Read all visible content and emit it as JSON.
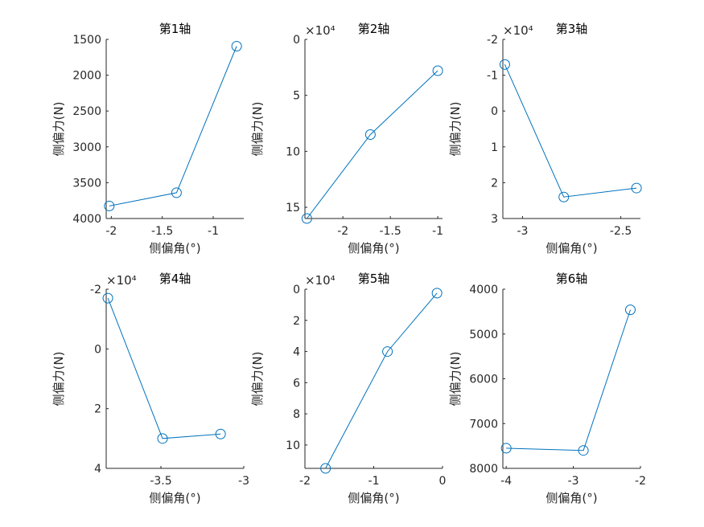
{
  "chart_data": [
    {
      "type": "line",
      "title": "第1轴",
      "xlabel": "侧偏角(°)",
      "ylabel": "侧偏力(N)",
      "x": [
        -2.02,
        -1.36,
        -0.77
      ],
      "y": [
        3825,
        3640,
        1595
      ],
      "xlim": [
        -2.05,
        -0.7
      ],
      "ylim": [
        1500,
        4000
      ],
      "y_reversed": true,
      "xticks": [
        -2,
        -1.5,
        -1
      ],
      "xtick_labels": [
        "-2",
        "-1.5",
        "-1"
      ],
      "yticks": [
        1500,
        2000,
        2500,
        3000,
        3500,
        4000
      ],
      "ytick_labels": [
        "1500",
        "2000",
        "2500",
        "3000",
        "3500",
        "4000"
      ],
      "exponent": "",
      "marker": "circle",
      "color": "#0072BD"
    },
    {
      "type": "line",
      "title": "第2轴",
      "xlabel": "侧偏角(°)",
      "ylabel": "侧偏力(N)",
      "x": [
        -2.38,
        -1.71,
        -1.0
      ],
      "y": [
        160000,
        85000,
        28000
      ],
      "xlim": [
        -2.4,
        -0.95
      ],
      "ylim": [
        0,
        160000
      ],
      "y_reversed": true,
      "xticks": [
        -2,
        -1.5,
        -1
      ],
      "xtick_labels": [
        "-2",
        "-1.5",
        "-1"
      ],
      "yticks": [
        0,
        50000,
        100000,
        150000
      ],
      "ytick_labels": [
        "0",
        "5",
        "10",
        "15"
      ],
      "exponent": "×10⁴",
      "marker": "circle",
      "color": "#0072BD"
    },
    {
      "type": "line",
      "title": "第3轴",
      "xlabel": "侧偏角(°)",
      "ylabel": "侧偏力(N)",
      "x": [
        -3.09,
        -2.79,
        -2.42
      ],
      "y": [
        -13000,
        24000,
        21500
      ],
      "xlim": [
        -3.1,
        -2.4
      ],
      "ylim": [
        -20000,
        30000
      ],
      "y_reversed": true,
      "xticks": [
        -3,
        -2.5
      ],
      "xtick_labels": [
        "-3",
        "-2.5"
      ],
      "yticks": [
        -20000,
        -10000,
        0,
        10000,
        20000,
        30000
      ],
      "ytick_labels": [
        "-2",
        "-1",
        "0",
        "1",
        "2",
        "3"
      ],
      "exponent": "×10⁴",
      "marker": "circle",
      "color": "#0072BD"
    },
    {
      "type": "line",
      "title": "第4轴",
      "xlabel": "侧偏角(°)",
      "ylabel": "侧偏力(N)",
      "x": [
        -3.82,
        -3.49,
        -3.14
      ],
      "y": [
        -17000,
        30000,
        28500
      ],
      "xlim": [
        -3.83,
        -3.0
      ],
      "ylim": [
        -20000,
        40000
      ],
      "y_reversed": true,
      "xticks": [
        -3.5,
        -3
      ],
      "xtick_labels": [
        "-3.5",
        "-3"
      ],
      "yticks": [
        -20000,
        0,
        20000,
        40000
      ],
      "ytick_labels": [
        "-2",
        "0",
        "2",
        "4"
      ],
      "exponent": "×10⁴",
      "marker": "circle",
      "color": "#0072BD"
    },
    {
      "type": "line",
      "title": "第5轴",
      "xlabel": "侧偏角(°)",
      "ylabel": "侧偏力(N)",
      "x": [
        -1.7,
        -0.8,
        -0.08
      ],
      "y": [
        115000,
        40000,
        2500
      ],
      "xlim": [
        -2,
        0
      ],
      "ylim": [
        0,
        115000
      ],
      "y_reversed": true,
      "xticks": [
        -2,
        -1,
        0
      ],
      "xtick_labels": [
        "-2",
        "-1",
        "0"
      ],
      "yticks": [
        0,
        20000,
        40000,
        60000,
        80000,
        100000
      ],
      "ytick_labels": [
        "0",
        "2",
        "4",
        "6",
        "8",
        "10"
      ],
      "exponent": "×10⁴",
      "marker": "circle",
      "color": "#0072BD"
    },
    {
      "type": "line",
      "title": "第6轴",
      "xlabel": "侧偏角(°)",
      "ylabel": "侧偏力(N)",
      "x": [
        -4.0,
        -2.85,
        -2.15
      ],
      "y": [
        7550,
        7600,
        4460
      ],
      "xlim": [
        -4.05,
        -2
      ],
      "ylim": [
        4000,
        8000
      ],
      "y_reversed": true,
      "xticks": [
        -4,
        -3,
        -2
      ],
      "xtick_labels": [
        "-4",
        "-3",
        "-2"
      ],
      "yticks": [
        4000,
        5000,
        6000,
        7000,
        8000
      ],
      "ytick_labels": [
        "4000",
        "5000",
        "6000",
        "7000",
        "8000"
      ],
      "exponent": "",
      "marker": "circle",
      "color": "#0072BD"
    }
  ]
}
